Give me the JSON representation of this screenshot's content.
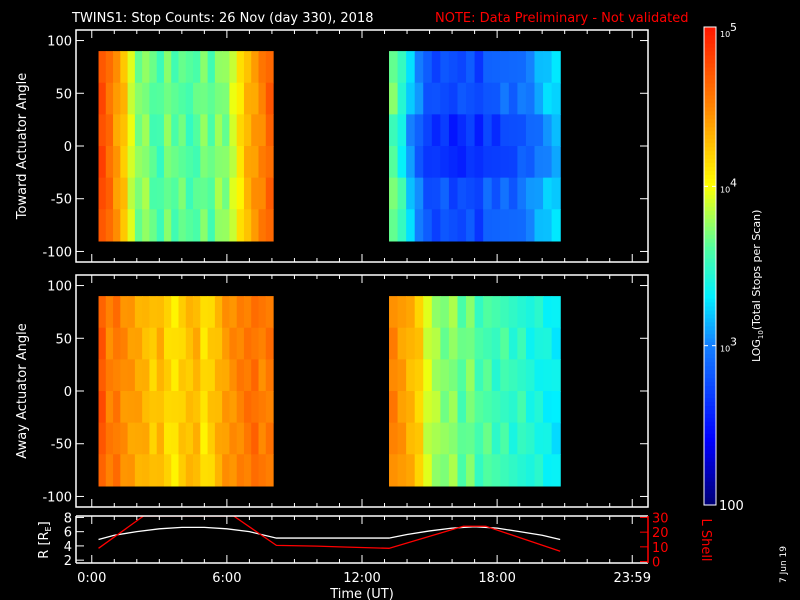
{
  "chart_data": {
    "type": "heatmap",
    "title": "TWINS1: Stop Counts: 26 Nov (day 330), 2018",
    "note": "NOTE: Data Preliminary - Not validated",
    "xlabel": "Time (UT)",
    "xlim_hours": [
      -0.7,
      24.7
    ],
    "xticks": [
      {
        "h": 0,
        "label": "0:00"
      },
      {
        "h": 6,
        "label": "6:00"
      },
      {
        "h": 12,
        "label": "12:00"
      },
      {
        "h": 18,
        "label": "18:00"
      },
      {
        "h": 24,
        "label": "23:59"
      }
    ],
    "angle_ticks": [
      "100",
      "50",
      "0",
      "-50",
      "-100"
    ],
    "angle_tick_values": [
      100,
      50,
      0,
      -50,
      -100
    ],
    "ylim": [
      -110,
      110
    ],
    "colorbar": {
      "label": "LOG10(Total Stops per Scan)",
      "label_main": "LOG",
      "label_sub": "10",
      "label_rest": "(Total Stops per Scan)",
      "range_log": [
        2,
        5
      ],
      "ticks": [
        {
          "v": 5,
          "base": "10",
          "exp": "5"
        },
        {
          "v": 4,
          "base": "10",
          "exp": "4"
        },
        {
          "v": 3,
          "base": "10",
          "exp": "3"
        },
        {
          "v": 2,
          "base": "100",
          "exp": ""
        }
      ]
    },
    "panels": [
      {
        "ylabel": "Toward Actuator Angle",
        "blocks": [
          {
            "start": 0.3,
            "end": 8.05,
            "values": [
              4.75,
              4.6,
              4.4,
              4.25,
              3.9,
              3.7,
              3.75,
              3.6,
              3.55,
              3.7,
              3.6,
              3.65,
              3.55,
              3.6,
              3.7,
              3.6,
              3.75,
              3.7,
              3.9,
              4.1,
              4.3,
              4.4,
              4.5,
              4.65
            ]
          },
          {
            "start": 13.2,
            "end": 20.8,
            "values": [
              3.7,
              3.5,
              3.2,
              3.0,
              2.8,
              2.75,
              2.8,
              2.7,
              2.75,
              2.8,
              2.7,
              2.85,
              2.8,
              2.9,
              2.85,
              2.95,
              3.0,
              3.1,
              3.2,
              3.25
            ]
          }
        ]
      },
      {
        "ylabel": "Away Actuator Angle",
        "blocks": [
          {
            "start": 0.3,
            "end": 8.05,
            "values": [
              4.7,
              4.5,
              4.55,
              4.45,
              4.4,
              4.35,
              4.3,
              4.2,
              4.3,
              4.15,
              4.1,
              4.2,
              4.25,
              4.3,
              4.1,
              4.2,
              4.3,
              4.4,
              4.45,
              4.5,
              4.55,
              4.6,
              4.5,
              4.55
            ]
          },
          {
            "start": 13.2,
            "end": 20.8,
            "values": [
              4.5,
              4.4,
              4.3,
              4.2,
              3.9,
              3.8,
              3.7,
              3.75,
              3.6,
              3.7,
              3.55,
              3.6,
              3.5,
              3.55,
              3.45,
              3.5,
              3.4,
              3.4,
              3.35,
              3.3
            ]
          }
        ]
      }
    ],
    "orbit": {
      "ylabel": "R [RE]",
      "ylabel_main": "R [R",
      "ylabel_sub": "E",
      "ylabel_end": "]",
      "ylim": [
        1.6,
        8.2
      ],
      "yticks": [
        "2",
        "4",
        "6",
        "8"
      ],
      "ytick_values": [
        2,
        4,
        6,
        8
      ],
      "y2label": "L Shell",
      "y2lim": [
        -1,
        31
      ],
      "y2ticks": [
        "0",
        "10",
        "20",
        "30"
      ],
      "y2tick_values": [
        0,
        10,
        20,
        30
      ],
      "R": [
        [
          0.3,
          4.9
        ],
        [
          1,
          5.5
        ],
        [
          2,
          6.0
        ],
        [
          3,
          6.4
        ],
        [
          4,
          6.6
        ],
        [
          5,
          6.6
        ],
        [
          6,
          6.4
        ],
        [
          7,
          6.0
        ],
        [
          8.2,
          5.1
        ],
        [
          13.2,
          5.1
        ],
        [
          14,
          5.6
        ],
        [
          15,
          6.1
        ],
        [
          16,
          6.5
        ],
        [
          17,
          6.7
        ],
        [
          18,
          6.5
        ],
        [
          19,
          6.0
        ],
        [
          20,
          5.5
        ],
        [
          20.8,
          4.9
        ]
      ],
      "L": [
        [
          0.3,
          9
        ],
        [
          2.3,
          31
        ],
        [
          6.3,
          31
        ],
        [
          8.2,
          11
        ],
        [
          10,
          10.5
        ],
        [
          11,
          10
        ],
        [
          13.2,
          9
        ],
        [
          16.5,
          24
        ],
        [
          17.5,
          24
        ],
        [
          20.8,
          7
        ]
      ]
    },
    "date_stamp": "7 Jun 19"
  }
}
